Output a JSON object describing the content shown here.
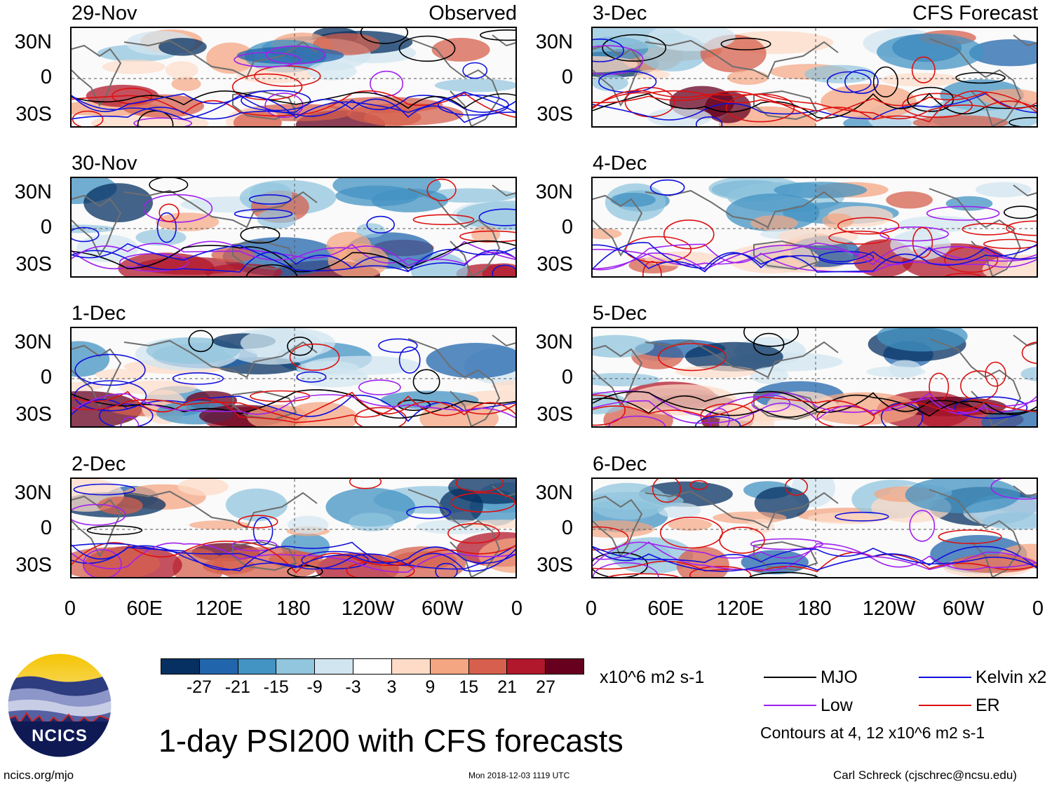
{
  "panels": [
    {
      "date": "29-Nov",
      "tag": "Observed",
      "col": 0,
      "row": 0
    },
    {
      "date": "30-Nov",
      "tag": "",
      "col": 0,
      "row": 1
    },
    {
      "date": "1-Dec",
      "tag": "",
      "col": 0,
      "row": 2
    },
    {
      "date": "2-Dec",
      "tag": "",
      "col": 0,
      "row": 3
    },
    {
      "date": "3-Dec",
      "tag": "CFS Forecast",
      "col": 1,
      "row": 0
    },
    {
      "date": "4-Dec",
      "tag": "",
      "col": 1,
      "row": 1
    },
    {
      "date": "5-Dec",
      "tag": "",
      "col": 1,
      "row": 2
    },
    {
      "date": "6-Dec",
      "tag": "",
      "col": 1,
      "row": 3
    }
  ],
  "y_labels": [
    "30N",
    "0",
    "30S"
  ],
  "x_labels": [
    "0",
    "60E",
    "120E",
    "180",
    "120W",
    "60W",
    "0"
  ],
  "colorbar": {
    "labels": [
      "-27",
      "-21",
      "-15",
      "-9",
      "-3",
      "3",
      "9",
      "15",
      "21",
      "27"
    ],
    "colors": [
      "#053061",
      "#2166ac",
      "#4393c3",
      "#92c5de",
      "#d1e5f0",
      "#ffffff",
      "#fddbc7",
      "#f4a582",
      "#d6604d",
      "#b2182b",
      "#67001f"
    ],
    "units": "x10^6 m2 s-1"
  },
  "legend": {
    "items": [
      {
        "label": "MJO",
        "color": "#000000"
      },
      {
        "label": "Kelvin x2",
        "color": "#1010dd"
      },
      {
        "label": "Low",
        "color": "#a020f0"
      },
      {
        "label": "ER",
        "color": "#dd1010"
      }
    ],
    "note": "Contours at 4, 12 x10^6 m2 s-1"
  },
  "title": "1-day PSI200 with CFS forecasts",
  "logo_text": "NCICS",
  "footer": {
    "url": "ncics.org/mjo",
    "timestamp": "Mon 2018-12-03 1119 UTC",
    "credit": "Carl Schreck (cjschrec@ncsu.edu)"
  }
}
